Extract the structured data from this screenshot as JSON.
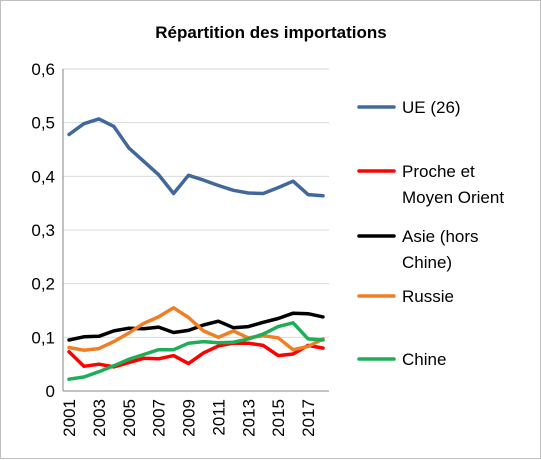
{
  "chart_data": {
    "type": "line",
    "title": "Répartition des importations",
    "xlabel": "",
    "ylabel": "",
    "x": [
      2001,
      2002,
      2003,
      2004,
      2005,
      2006,
      2007,
      2008,
      2009,
      2010,
      2011,
      2012,
      2013,
      2014,
      2015,
      2016,
      2017,
      2018
    ],
    "x_tick_labels": [
      "2001",
      "2003",
      "2005",
      "2007",
      "2009",
      "2011",
      "2013",
      "2015",
      "2017"
    ],
    "y_tick_labels": [
      "0",
      "0,1",
      "0,2",
      "0,3",
      "0,4",
      "0,5",
      "0,6"
    ],
    "ylim": [
      0,
      0.6
    ],
    "grid": true,
    "legend_position": "right",
    "series": [
      {
        "name": "UE (26)",
        "legend_lines": [
          "UE (26)"
        ],
        "color": "#41689c",
        "values": [
          0.478,
          0.498,
          0.507,
          0.493,
          0.453,
          0.428,
          0.403,
          0.368,
          0.402,
          0.393,
          0.383,
          0.374,
          0.369,
          0.368,
          0.379,
          0.391,
          0.366,
          0.364
        ]
      },
      {
        "name": "Proche et Moyen Orient",
        "legend_lines": [
          "Proche et",
          "Moyen Orient"
        ],
        "color": "#ff0000",
        "values": [
          0.073,
          0.046,
          0.05,
          0.045,
          0.053,
          0.061,
          0.06,
          0.066,
          0.051,
          0.071,
          0.084,
          0.089,
          0.089,
          0.085,
          0.066,
          0.069,
          0.085,
          0.08
        ]
      },
      {
        "name": "Asie (hors Chine)",
        "legend_lines": [
          "Asie (hors",
          "Chine)"
        ],
        "color": "#000000",
        "values": [
          0.095,
          0.101,
          0.102,
          0.112,
          0.117,
          0.116,
          0.119,
          0.109,
          0.113,
          0.123,
          0.13,
          0.118,
          0.12,
          0.128,
          0.135,
          0.145,
          0.144,
          0.138
        ]
      },
      {
        "name": "Russie",
        "legend_lines": [
          "Russie"
        ],
        "color": "#f07e25",
        "values": [
          0.081,
          0.076,
          0.079,
          0.092,
          0.108,
          0.126,
          0.138,
          0.155,
          0.137,
          0.112,
          0.1,
          0.112,
          0.099,
          0.103,
          0.099,
          0.077,
          0.083,
          0.097
        ]
      },
      {
        "name": "Chine",
        "legend_lines": [
          "Chine"
        ],
        "color": "#1fad57",
        "values": [
          0.022,
          0.026,
          0.036,
          0.047,
          0.059,
          0.068,
          0.077,
          0.077,
          0.089,
          0.092,
          0.09,
          0.091,
          0.097,
          0.106,
          0.12,
          0.127,
          0.097,
          0.095
        ]
      }
    ]
  }
}
